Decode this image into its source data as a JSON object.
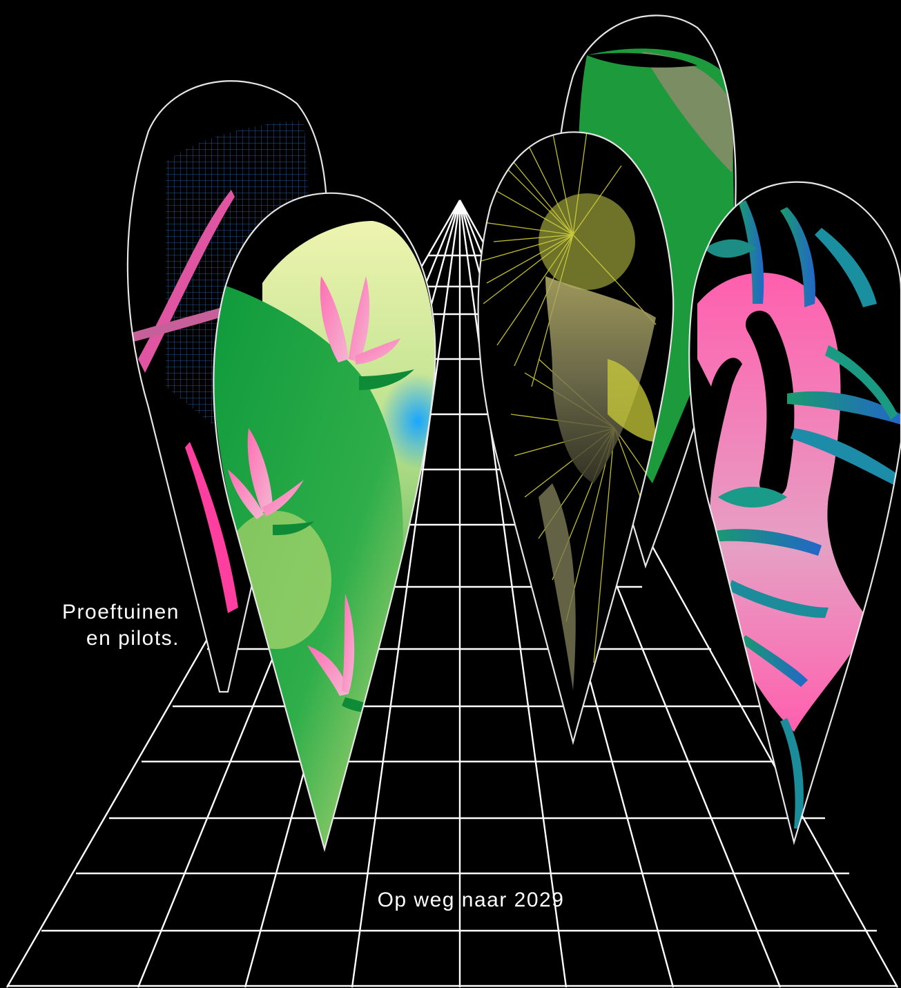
{
  "captions": {
    "left_line1": "Proeftuinen",
    "left_line2": "en pilots.",
    "bottom": "Op weg naar 2029"
  },
  "colors": {
    "background": "#000000",
    "grid": "#ffffff",
    "outline": "#e6e6e6",
    "green": "#1e9a3c",
    "pink": "#ff5fa8",
    "teal": "#1f8c8c",
    "blue": "#2e6fd0",
    "yellow": "#d9d232",
    "pale_yellow": "#e8f0a6"
  }
}
